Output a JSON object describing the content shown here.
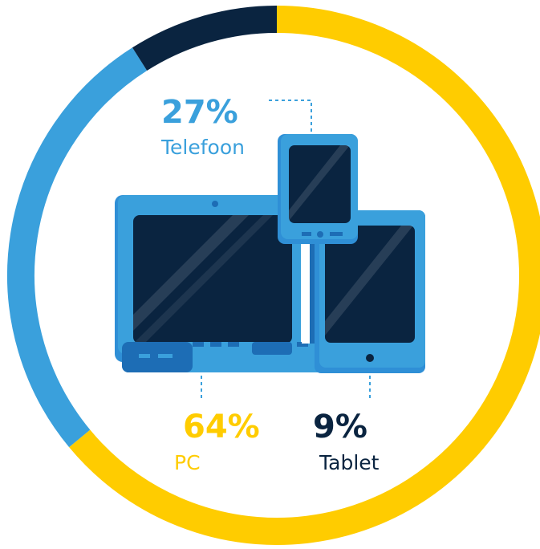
{
  "chart_data": {
    "type": "pie",
    "categories": [
      "PC",
      "Telefoon",
      "Tablet"
    ],
    "values": [
      64,
      27,
      9
    ],
    "value_labels": [
      "64%",
      "27%",
      "9%"
    ],
    "title": "",
    "legend": "none",
    "colors": [
      "#ffcc00",
      "#3aa0dc",
      "#0a2440"
    ]
  },
  "icons": [
    "laptop-icon",
    "phone-icon",
    "tablet-icon"
  ]
}
